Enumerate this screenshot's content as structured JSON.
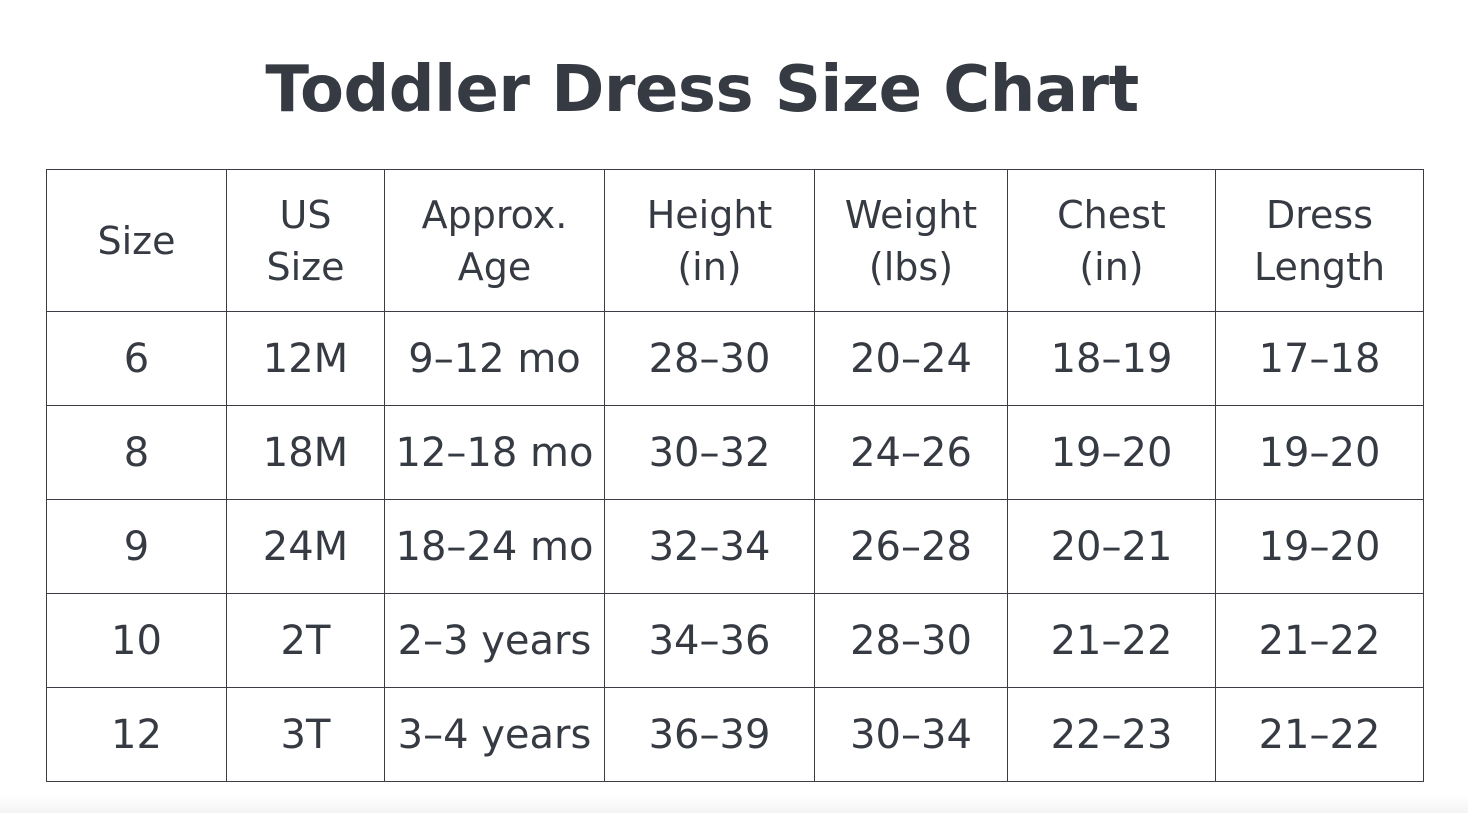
{
  "title": "Toddler Dress Size Chart",
  "table": {
    "headers": [
      [
        "Size"
      ],
      [
        "US",
        "Size"
      ],
      [
        "Approx.",
        "Age"
      ],
      [
        "Height",
        "(in)"
      ],
      [
        "Weight",
        "(lbs)"
      ],
      [
        "Chest",
        "(in)"
      ],
      [
        "Dress",
        "Length"
      ]
    ],
    "rows": [
      [
        "6",
        "12M",
        "9–12 mo",
        "28–30",
        "20–24",
        "18–19",
        "17–18"
      ],
      [
        "8",
        "18M",
        "12–18 mo",
        "30–32",
        "24–26",
        "19–20",
        "19–20"
      ],
      [
        "9",
        "24M",
        "18–24 mo",
        "32–34",
        "26–28",
        "20–21",
        "19–20"
      ],
      [
        "10",
        "2T",
        "2–3 years",
        "34–36",
        "28–30",
        "21–22",
        "21–22"
      ],
      [
        "12",
        "3T",
        "3–4 years",
        "36–39",
        "30–34",
        "22–23",
        "21–22"
      ]
    ]
  }
}
